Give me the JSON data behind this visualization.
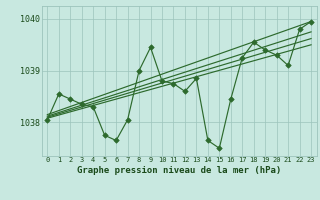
{
  "x": [
    0,
    1,
    2,
    3,
    4,
    5,
    6,
    7,
    8,
    9,
    10,
    11,
    12,
    13,
    14,
    15,
    16,
    17,
    18,
    19,
    20,
    21,
    22,
    23
  ],
  "y": [
    1038.05,
    1038.55,
    1038.45,
    1038.35,
    1038.3,
    1037.75,
    1037.65,
    1038.05,
    1039.0,
    1039.45,
    1038.8,
    1038.75,
    1038.6,
    1038.85,
    1037.65,
    1037.5,
    1038.45,
    1039.25,
    1039.55,
    1039.4,
    1039.3,
    1039.1,
    1039.8,
    1039.95
  ],
  "trend_lines": [
    [
      1038.08,
      1039.5
    ],
    [
      1038.1,
      1039.62
    ],
    [
      1038.12,
      1039.75
    ],
    [
      1038.15,
      1039.95
    ]
  ],
  "line_color": "#2d6a2d",
  "marker_color": "#2d6a2d",
  "trend_color": "#2d6a2d",
  "bg_color": "#c8e8e0",
  "grid_color": "#9cc4bc",
  "text_color": "#1a4a1a",
  "xlabel": "Graphe pression niveau de la mer (hPa)",
  "ylim": [
    1037.35,
    1040.25
  ],
  "xlim": [
    -0.5,
    23.5
  ],
  "yticks": [
    1038,
    1039,
    1040
  ],
  "xticks": [
    0,
    1,
    2,
    3,
    4,
    5,
    6,
    7,
    8,
    9,
    10,
    11,
    12,
    13,
    14,
    15,
    16,
    17,
    18,
    19,
    20,
    21,
    22,
    23
  ],
  "figsize": [
    3.2,
    2.0
  ],
  "dpi": 100
}
